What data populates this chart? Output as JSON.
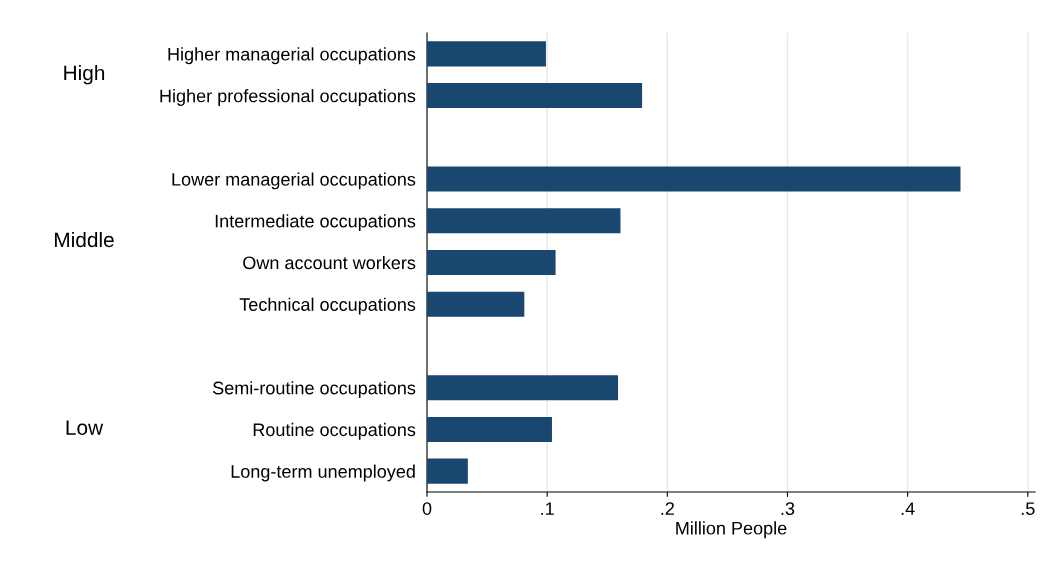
{
  "chart_data": {
    "type": "bar",
    "orientation": "horizontal",
    "xlabel": "Million People",
    "categories": [
      "Higher managerial occupations",
      "Higher professional occupations",
      null,
      "Lower managerial occupations",
      "Intermediate occupations",
      "Own account workers",
      "Technical occupations",
      null,
      "Semi-routine occupations",
      "Routine occupations",
      "Long-term unemployed"
    ],
    "values": [
      0.099,
      0.179,
      null,
      0.444,
      0.161,
      0.107,
      0.081,
      null,
      0.159,
      0.104,
      0.034
    ],
    "color": "#1a476f",
    "annotations": [
      "High",
      "Middle",
      "Low"
    ],
    "xlim": [
      0,
      0.506
    ],
    "xticks": [
      0,
      {
        "value": 0.1,
        "label": ".1"
      },
      {
        "value": 0.2,
        "label": ".2"
      },
      {
        "value": 0.3,
        "label": ".3"
      },
      {
        "value": 0.4,
        "label": ".4"
      },
      {
        "value": 0.5,
        "label": ".5"
      }
    ],
    "grid": "x"
  }
}
